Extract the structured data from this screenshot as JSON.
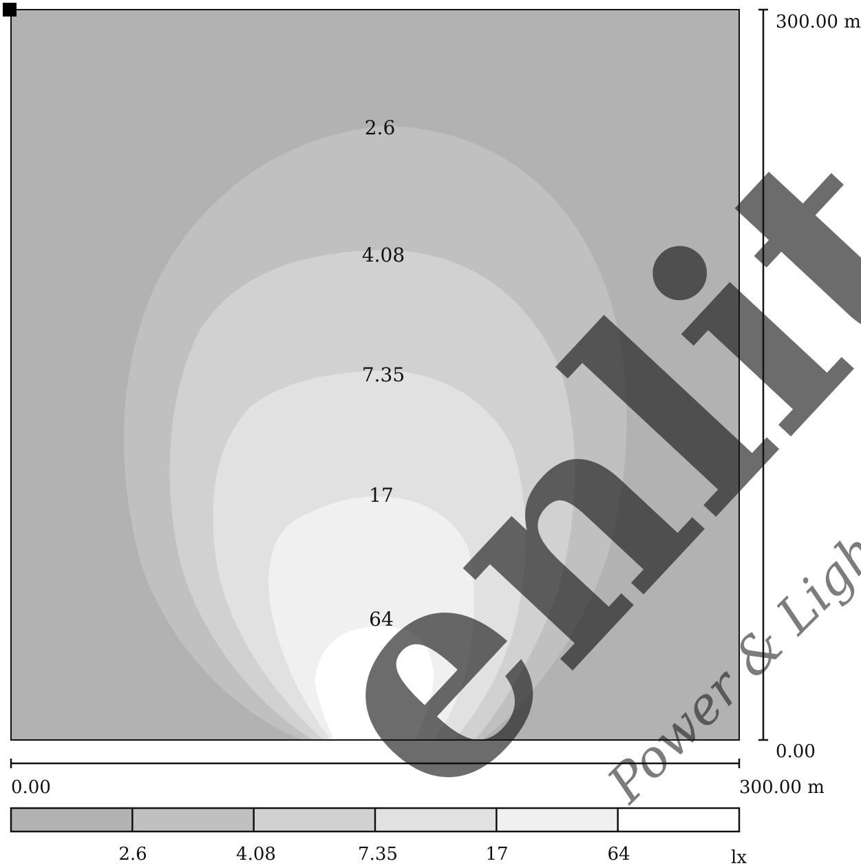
{
  "chart_data": {
    "type": "heatmap",
    "title": "",
    "x_axis": {
      "min_label": "0.00",
      "max_label": "300.00 m",
      "range": [
        0,
        300
      ],
      "unit": "m"
    },
    "y_axis": {
      "min_label": "0.00",
      "max_label": "300.00 m",
      "range": [
        0,
        300
      ],
      "unit": "m"
    },
    "isolines": [
      {
        "value": 2.6,
        "label": "2.6"
      },
      {
        "value": 4.08,
        "label": "4.08"
      },
      {
        "value": 7.35,
        "label": "7.35"
      },
      {
        "value": 17,
        "label": "17"
      },
      {
        "value": 64,
        "label": "64"
      }
    ],
    "legend": {
      "placement": "bottom",
      "unit": "lx",
      "thresholds": [
        "2.6",
        "4.08",
        "7.35",
        "17",
        "64"
      ],
      "colors": [
        "#b2b2b2",
        "#c0c0c0",
        "#d1d1d1",
        "#e1e1e1",
        "#f0f0f0",
        "#ffffff"
      ]
    },
    "grid": false
  },
  "watermark": {
    "brand_text": "enlite",
    "tagline": "Power & Lighting",
    "color": "#f5787c"
  }
}
